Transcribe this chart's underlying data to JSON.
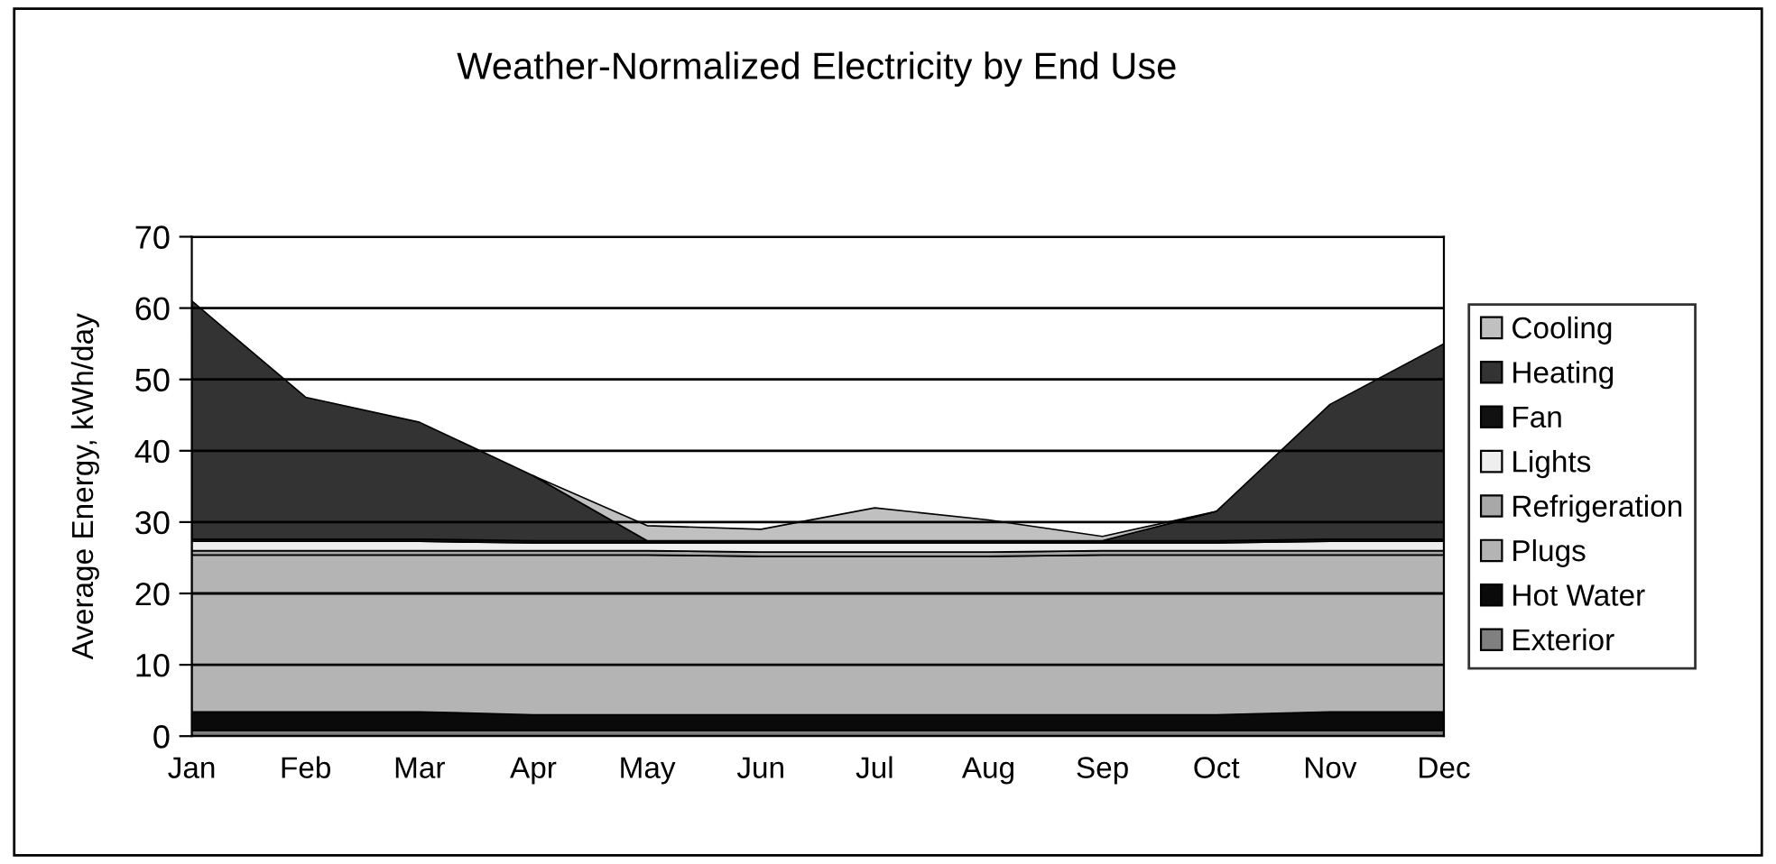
{
  "chart_data": {
    "type": "area",
    "stacked": true,
    "title": "Weather-Normalized Electricity by End Use",
    "ylabel": "Average Energy, kWh/day",
    "categories": [
      "Jan",
      "Feb",
      "Mar",
      "Apr",
      "May",
      "Jun",
      "Jul",
      "Aug",
      "Sep",
      "Oct",
      "Nov",
      "Dec"
    ],
    "series": [
      {
        "name": "Exterior",
        "color": "#808080",
        "values": [
          0.8,
          0.8,
          0.8,
          0.8,
          0.8,
          0.8,
          0.8,
          0.8,
          0.8,
          0.8,
          0.8,
          0.8
        ]
      },
      {
        "name": "Hot Water",
        "color": "#0a0a0a",
        "values": [
          2.6,
          2.6,
          2.6,
          2.2,
          2.2,
          2.2,
          2.2,
          2.2,
          2.2,
          2.2,
          2.6,
          2.6
        ]
      },
      {
        "name": "Plugs",
        "color": "#b4b4b4",
        "values": [
          22.0,
          22.0,
          22.0,
          22.4,
          22.4,
          22.2,
          22.2,
          22.2,
          22.4,
          22.4,
          22.0,
          22.0
        ]
      },
      {
        "name": "Refrigeration",
        "color": "#a8a8a8",
        "values": [
          0.6,
          0.6,
          0.6,
          0.6,
          0.6,
          0.6,
          0.6,
          0.6,
          0.6,
          0.6,
          0.6,
          0.6
        ]
      },
      {
        "name": "Lights",
        "color": "#eeeeee",
        "values": [
          1.3,
          1.3,
          1.3,
          1.1,
          1.1,
          1.3,
          1.3,
          1.3,
          1.1,
          1.1,
          1.3,
          1.3
        ]
      },
      {
        "name": "Fan",
        "color": "#111111",
        "values": [
          0.3,
          0.3,
          0.3,
          0.3,
          0.3,
          0.3,
          0.3,
          0.3,
          0.3,
          0.3,
          0.3,
          0.3
        ]
      },
      {
        "name": "Heating",
        "color": "#333333",
        "values": [
          33.4,
          19.9,
          16.4,
          9.1,
          0,
          0,
          0,
          0,
          0,
          4.1,
          18.9,
          27.4
        ]
      },
      {
        "name": "Cooling",
        "color": "#c0c0c0",
        "values": [
          null,
          null,
          null,
          0,
          2.1,
          1.6,
          4.6,
          2.9,
          0.6,
          0,
          null,
          null
        ]
      }
    ],
    "ylim": [
      0,
      70
    ],
    "yticks": [
      0,
      10,
      20,
      30,
      40,
      50,
      60,
      70
    ],
    "grid": "y",
    "legend": "right"
  }
}
